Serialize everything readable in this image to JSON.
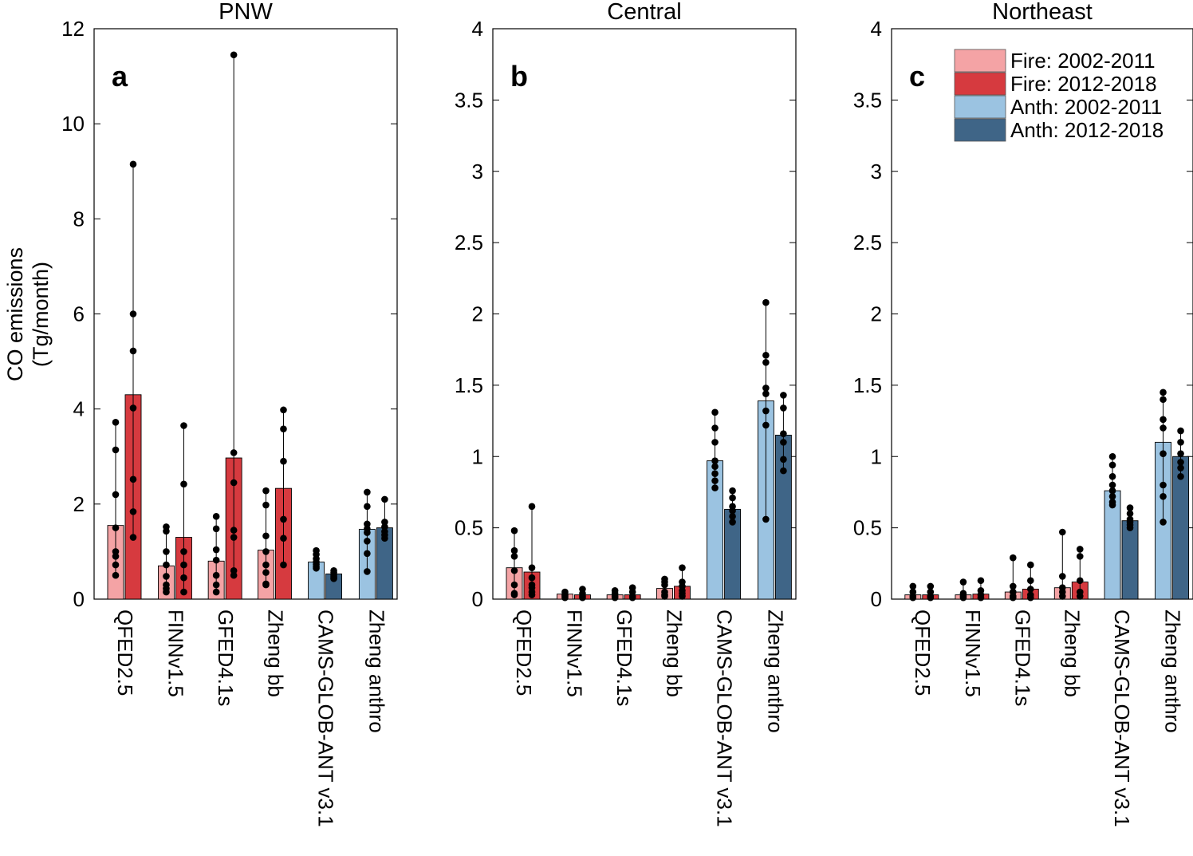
{
  "chart_data": [
    {
      "type": "bar",
      "panel_letter": "a",
      "title": "PNW",
      "ylabel": [
        "CO emissions",
        "(Tg/month)"
      ],
      "ylim": [
        0,
        12
      ],
      "yticks": [
        0,
        2,
        4,
        6,
        8,
        10,
        12
      ],
      "ytick_labels": [
        "0",
        "2",
        "4",
        "6",
        "8",
        "10",
        "12"
      ],
      "categories": [
        "QFED2.5",
        "FINNv1.5",
        "GFED4.1s",
        "Zheng bb",
        "CAMS-GLOB-ANT v3.1",
        "Zheng anthro"
      ],
      "groups": [
        {
          "series": [
            "Fire: 2002-2011",
            "Fire: 2012-2018"
          ],
          "means": [
            1.55,
            4.3
          ],
          "points": [
            [
              3.72,
              3.14,
              2.2,
              1.5,
              1.0,
              0.9,
              0.72,
              0.5
            ],
            [
              9.15,
              6.0,
              5.22,
              4.02,
              2.52,
              1.84,
              1.3
            ]
          ]
        },
        {
          "series": [
            "Fire: 2002-2011",
            "Fire: 2012-2018"
          ],
          "means": [
            0.7,
            1.3
          ],
          "points": [
            [
              1.52,
              1.43,
              1.0,
              0.72,
              0.48,
              0.3,
              0.22,
              0.15
            ],
            [
              3.65,
              2.42,
              1.0,
              0.72,
              0.45,
              0.15
            ]
          ]
        },
        {
          "series": [
            "Fire: 2002-2011",
            "Fire: 2012-2018"
          ],
          "means": [
            0.8,
            2.97
          ],
          "points": [
            [
              1.74,
              1.48,
              1.04,
              0.82,
              0.5,
              0.3,
              0.15
            ],
            [
              11.45,
              3.08,
              2.45,
              1.45,
              1.3,
              0.6,
              0.5
            ]
          ]
        },
        {
          "series": [
            "Fire: 2002-2011",
            "Fire: 2012-2018"
          ],
          "means": [
            1.03,
            2.33
          ],
          "points": [
            [
              2.28,
              1.98,
              1.33,
              1.0,
              0.72,
              0.56,
              0.32,
              0.3
            ],
            [
              3.98,
              3.58,
              2.9,
              1.68,
              1.28,
              0.72
            ]
          ]
        },
        {
          "series": [
            "Anth: 2002-2011",
            "Anth: 2012-2018"
          ],
          "means": [
            0.78,
            0.53
          ],
          "points": [
            [
              1.02,
              0.94,
              0.85,
              0.78,
              0.73,
              0.68,
              0.65
            ],
            [
              0.6,
              0.56,
              0.52,
              0.48,
              0.45,
              0.43
            ]
          ]
        },
        {
          "series": [
            "Anth: 2002-2011",
            "Anth: 2012-2018"
          ],
          "means": [
            1.47,
            1.5
          ],
          "points": [
            [
              2.25,
              1.95,
              1.58,
              1.48,
              1.4,
              1.22,
              0.96,
              0.58
            ],
            [
              2.1,
              1.62,
              1.52,
              1.42,
              1.35,
              1.28
            ]
          ]
        }
      ]
    },
    {
      "type": "bar",
      "panel_letter": "b",
      "title": "Central",
      "ylim": [
        0,
        4
      ],
      "yticks": [
        0,
        0.5,
        1,
        1.5,
        2,
        2.5,
        3,
        3.5,
        4
      ],
      "ytick_labels": [
        "0",
        "0.5",
        "1",
        "1.5",
        "2",
        "2.5",
        "3",
        "3.5",
        "4"
      ],
      "categories": [
        "QFED2.5",
        "FINNv1.5",
        "GFED4.1s",
        "Zheng bb",
        "CAMS-GLOB-ANT v3.1",
        "Zheng anthro"
      ],
      "groups": [
        {
          "series": [
            "Fire: 2002-2011",
            "Fire: 2012-2018"
          ],
          "means": [
            0.22,
            0.19
          ],
          "points": [
            [
              0.48,
              0.34,
              0.3,
              0.2,
              0.1,
              0.04,
              0.03
            ],
            [
              0.65,
              0.22,
              0.15,
              0.1,
              0.08,
              0.05,
              0.03
            ]
          ]
        },
        {
          "series": [
            "Fire: 2002-2011",
            "Fire: 2012-2018"
          ],
          "means": [
            0.035,
            0.03
          ],
          "points": [
            [
              0.05,
              0.03,
              0.02,
              0.01
            ],
            [
              0.07,
              0.04,
              0.02,
              0.01
            ]
          ]
        },
        {
          "series": [
            "Fire: 2002-2011",
            "Fire: 2012-2018"
          ],
          "means": [
            0.03,
            0.03
          ],
          "points": [
            [
              0.06,
              0.04,
              0.02,
              0.01
            ],
            [
              0.08,
              0.05,
              0.02,
              0.01
            ]
          ]
        },
        {
          "series": [
            "Fire: 2002-2011",
            "Fire: 2012-2018"
          ],
          "means": [
            0.075,
            0.09
          ],
          "points": [
            [
              0.14,
              0.12,
              0.1,
              0.05,
              0.03,
              0.02
            ],
            [
              0.22,
              0.12,
              0.09,
              0.06,
              0.04,
              0.02
            ]
          ]
        },
        {
          "series": [
            "Anth: 2002-2011",
            "Anth: 2012-2018"
          ],
          "means": [
            0.97,
            0.63
          ],
          "points": [
            [
              1.31,
              1.2,
              1.1,
              0.97,
              0.93,
              0.88,
              0.83,
              0.78
            ],
            [
              0.76,
              0.71,
              0.65,
              0.62,
              0.58,
              0.54
            ]
          ]
        },
        {
          "series": [
            "Anth: 2002-2011",
            "Anth: 2012-2018"
          ],
          "means": [
            1.39,
            1.15
          ],
          "points": [
            [
              2.08,
              1.71,
              1.66,
              1.48,
              1.44,
              1.32,
              1.22,
              0.56
            ],
            [
              1.43,
              1.34,
              1.16,
              1.1,
              0.98,
              0.9
            ]
          ]
        }
      ]
    },
    {
      "type": "bar",
      "panel_letter": "c",
      "title": "Northeast",
      "ylim": [
        0,
        4
      ],
      "yticks": [
        0,
        0.5,
        1,
        1.5,
        2,
        2.5,
        3,
        3.5,
        4
      ],
      "ytick_labels": [
        "0",
        "0.5",
        "1",
        "1.5",
        "2",
        "2.5",
        "3",
        "3.5",
        "4"
      ],
      "categories": [
        "QFED2.5",
        "FINNv1.5",
        "GFED4.1s",
        "Zheng bb",
        "CAMS-GLOB-ANT v3.1",
        "Zheng anthro"
      ],
      "legend": {
        "location": "top-right",
        "entries": [
          {
            "label": "Fire: 2002-2011",
            "color": "#f4a3a5"
          },
          {
            "label": "Fire: 2012-2018",
            "color": "#d63a3f"
          },
          {
            "label": "Anth: 2002-2011",
            "color": "#9bc3e1"
          },
          {
            "label": "Anth: 2012-2018",
            "color": "#3f6587"
          }
        ]
      },
      "groups": [
        {
          "series": [
            "Fire: 2002-2011",
            "Fire: 2012-2018"
          ],
          "means": [
            0.03,
            0.03
          ],
          "points": [
            [
              0.09,
              0.05,
              0.02,
              0.01
            ],
            [
              0.09,
              0.05,
              0.02,
              0.01
            ]
          ]
        },
        {
          "series": [
            "Fire: 2002-2011",
            "Fire: 2012-2018"
          ],
          "means": [
            0.03,
            0.035
          ],
          "points": [
            [
              0.12,
              0.04,
              0.02,
              0.01
            ],
            [
              0.13,
              0.06,
              0.03,
              0.01
            ]
          ]
        },
        {
          "series": [
            "Fire: 2002-2011",
            "Fire: 2012-2018"
          ],
          "means": [
            0.05,
            0.07
          ],
          "points": [
            [
              0.29,
              0.09,
              0.05,
              0.02,
              0.01
            ],
            [
              0.24,
              0.13,
              0.07,
              0.03,
              0.01
            ]
          ]
        },
        {
          "series": [
            "Fire: 2002-2011",
            "Fire: 2012-2018"
          ],
          "means": [
            0.08,
            0.12
          ],
          "points": [
            [
              0.47,
              0.16,
              0.08,
              0.05,
              0.02
            ],
            [
              0.35,
              0.3,
              0.13,
              0.05,
              0.02
            ]
          ]
        },
        {
          "series": [
            "Anth: 2002-2011",
            "Anth: 2012-2018"
          ],
          "means": [
            0.76,
            0.55
          ],
          "points": [
            [
              1.0,
              0.94,
              0.86,
              0.8,
              0.76,
              0.72,
              0.68,
              0.66
            ],
            [
              0.64,
              0.6,
              0.56,
              0.54,
              0.52,
              0.5
            ]
          ]
        },
        {
          "series": [
            "Anth: 2002-2011",
            "Anth: 2012-2018"
          ],
          "means": [
            1.1,
            1.0
          ],
          "points": [
            [
              1.45,
              1.4,
              1.26,
              1.2,
              1.02,
              0.8,
              0.72,
              0.54
            ],
            [
              1.18,
              1.1,
              1.02,
              0.96,
              0.92,
              0.86
            ]
          ]
        }
      ]
    }
  ]
}
